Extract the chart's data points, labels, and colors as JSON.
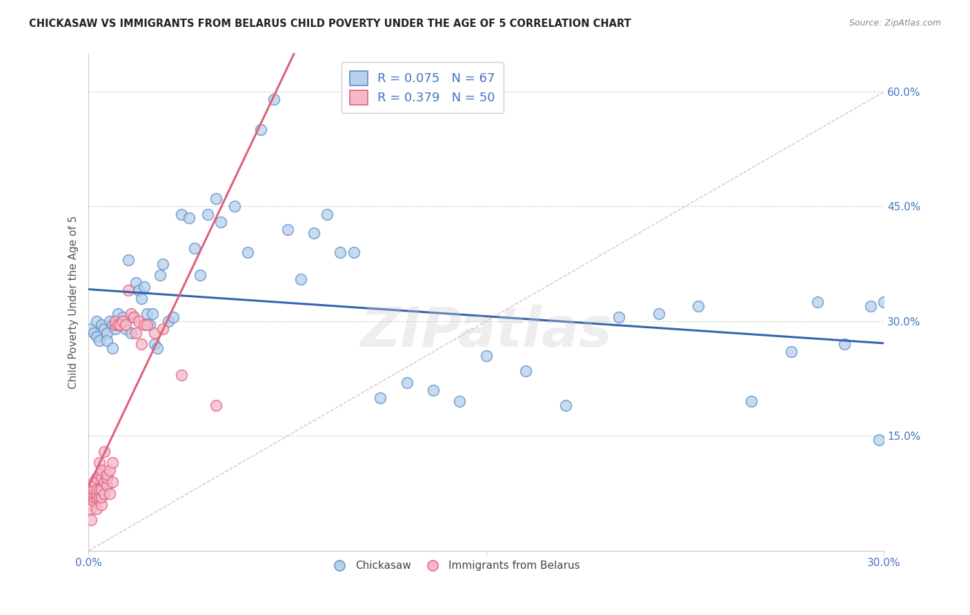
{
  "title": "CHICKASAW VS IMMIGRANTS FROM BELARUS CHILD POVERTY UNDER THE AGE OF 5 CORRELATION CHART",
  "source": "Source: ZipAtlas.com",
  "ylabel": "Child Poverty Under the Age of 5",
  "ytick_labels": [
    "",
    "15.0%",
    "30.0%",
    "45.0%",
    "60.0%"
  ],
  "ytick_values": [
    0.0,
    0.15,
    0.3,
    0.45,
    0.6
  ],
  "xlim": [
    0.0,
    0.3
  ],
  "ylim": [
    0.0,
    0.65
  ],
  "legend_r1": "R = 0.075",
  "legend_n1": "N = 67",
  "legend_r2": "R = 0.379",
  "legend_n2": "N = 50",
  "watermark": "ZIPatlas",
  "color_chickasaw_fill": "#b8d0ea",
  "color_chickasaw_edge": "#5b8fc9",
  "color_belarus_fill": "#f5b8c8",
  "color_belarus_edge": "#e06080",
  "color_line1": "#3464b0",
  "color_line2": "#e0607a",
  "color_diag": "#d0a0b0",
  "title_color": "#222222",
  "axis_color": "#4472c4",
  "grid_color": "#d8d8d8",
  "chickasaw_x": [
    0.001,
    0.002,
    0.003,
    0.003,
    0.004,
    0.005,
    0.006,
    0.007,
    0.007,
    0.008,
    0.009,
    0.009,
    0.01,
    0.011,
    0.012,
    0.013,
    0.014,
    0.015,
    0.016,
    0.017,
    0.018,
    0.019,
    0.02,
    0.021,
    0.022,
    0.023,
    0.024,
    0.025,
    0.026,
    0.027,
    0.028,
    0.03,
    0.032,
    0.035,
    0.038,
    0.04,
    0.042,
    0.045,
    0.048,
    0.05,
    0.055,
    0.06,
    0.065,
    0.07,
    0.075,
    0.08,
    0.085,
    0.09,
    0.095,
    0.1,
    0.11,
    0.12,
    0.13,
    0.14,
    0.15,
    0.165,
    0.18,
    0.2,
    0.215,
    0.23,
    0.25,
    0.265,
    0.275,
    0.285,
    0.295,
    0.298,
    0.3
  ],
  "chickasaw_y": [
    0.29,
    0.285,
    0.28,
    0.3,
    0.275,
    0.295,
    0.29,
    0.285,
    0.275,
    0.3,
    0.265,
    0.295,
    0.29,
    0.31,
    0.295,
    0.305,
    0.29,
    0.38,
    0.285,
    0.305,
    0.35,
    0.34,
    0.33,
    0.345,
    0.31,
    0.295,
    0.31,
    0.27,
    0.265,
    0.36,
    0.375,
    0.3,
    0.305,
    0.44,
    0.435,
    0.395,
    0.36,
    0.44,
    0.46,
    0.43,
    0.45,
    0.39,
    0.55,
    0.59,
    0.42,
    0.355,
    0.415,
    0.44,
    0.39,
    0.39,
    0.2,
    0.22,
    0.21,
    0.195,
    0.255,
    0.235,
    0.19,
    0.305,
    0.31,
    0.32,
    0.195,
    0.26,
    0.325,
    0.27,
    0.32,
    0.145,
    0.325
  ],
  "belarus_x": [
    0.001,
    0.001,
    0.001,
    0.002,
    0.002,
    0.002,
    0.002,
    0.002,
    0.003,
    0.003,
    0.003,
    0.003,
    0.003,
    0.004,
    0.004,
    0.004,
    0.004,
    0.005,
    0.005,
    0.005,
    0.005,
    0.005,
    0.006,
    0.006,
    0.006,
    0.007,
    0.007,
    0.007,
    0.008,
    0.008,
    0.009,
    0.009,
    0.01,
    0.01,
    0.011,
    0.012,
    0.013,
    0.014,
    0.015,
    0.016,
    0.017,
    0.018,
    0.019,
    0.02,
    0.021,
    0.022,
    0.025,
    0.028,
    0.035,
    0.048
  ],
  "belarus_y": [
    0.04,
    0.06,
    0.055,
    0.065,
    0.07,
    0.075,
    0.08,
    0.09,
    0.055,
    0.07,
    0.075,
    0.08,
    0.095,
    0.07,
    0.08,
    0.1,
    0.115,
    0.06,
    0.07,
    0.08,
    0.095,
    0.105,
    0.075,
    0.09,
    0.13,
    0.085,
    0.095,
    0.1,
    0.075,
    0.105,
    0.09,
    0.115,
    0.295,
    0.3,
    0.295,
    0.295,
    0.3,
    0.295,
    0.34,
    0.31,
    0.305,
    0.285,
    0.3,
    0.27,
    0.295,
    0.295,
    0.285,
    0.29,
    0.23,
    0.19
  ]
}
